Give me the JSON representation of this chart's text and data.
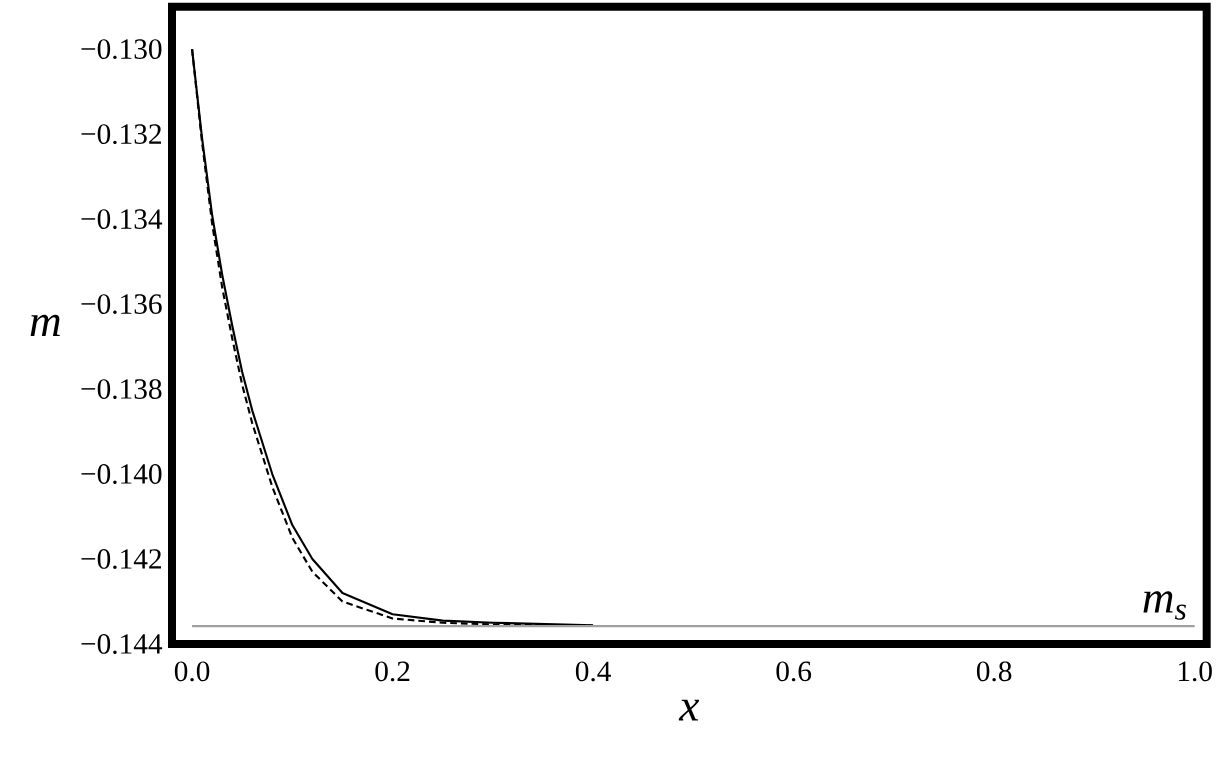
{
  "chart_data": {
    "type": "line",
    "xlabel": "x",
    "ylabel": "m",
    "xlim": [
      -0.02,
      1.012
    ],
    "ylim": [
      -0.144,
      -0.129
    ],
    "xticks": [
      {
        "value": 0,
        "label": "0.0"
      },
      {
        "value": 0.2,
        "label": "0.2"
      },
      {
        "value": 0.4,
        "label": "0.4"
      },
      {
        "value": 0.6,
        "label": "0.6"
      },
      {
        "value": 0.8,
        "label": "0.8"
      },
      {
        "value": 1,
        "label": "1.0"
      }
    ],
    "yticks": [
      {
        "value": -0.13,
        "label": "−0.130"
      },
      {
        "value": -0.132,
        "label": "−0.132"
      },
      {
        "value": -0.134,
        "label": "−0.134"
      },
      {
        "value": -0.136,
        "label": "−0.136"
      },
      {
        "value": -0.138,
        "label": "−0.138"
      },
      {
        "value": -0.14,
        "label": "−0.140"
      },
      {
        "value": -0.142,
        "label": "−0.142"
      },
      {
        "value": -0.144,
        "label": "−0.144"
      }
    ],
    "x": [
      0,
      0.01,
      0.02,
      0.03,
      0.04,
      0.05,
      0.06,
      0.08,
      0.1,
      0.12,
      0.15,
      0.2,
      0.25,
      0.3,
      0.4
    ],
    "series": [
      {
        "color": "#000000",
        "line_style": "solid",
        "values": [
          -0.13,
          -0.1321,
          -0.1339,
          -0.1353,
          -0.1365,
          -0.1376,
          -0.1385,
          -0.14,
          -0.1412,
          -0.142,
          -0.1428,
          -0.1433,
          -0.14345,
          -0.1435,
          -0.14356
        ]
      },
      {
        "color": "#000000",
        "line_style": "dashed",
        "values": [
          -0.13,
          -0.1322,
          -0.1341,
          -0.1356,
          -0.1368,
          -0.1379,
          -0.1388,
          -0.1403,
          -0.1415,
          -0.1423,
          -0.143,
          -0.1434,
          -0.1435,
          -0.14354,
          -0.14357
        ]
      },
      {
        "name": "m$_{s}$",
        "color": "#a0a0a0",
        "line_style": "solid",
        "x": [
          0,
          1
        ],
        "values": [
          -0.14358,
          -0.14358
        ]
      }
    ],
    "grid": false,
    "marker": "none"
  }
}
